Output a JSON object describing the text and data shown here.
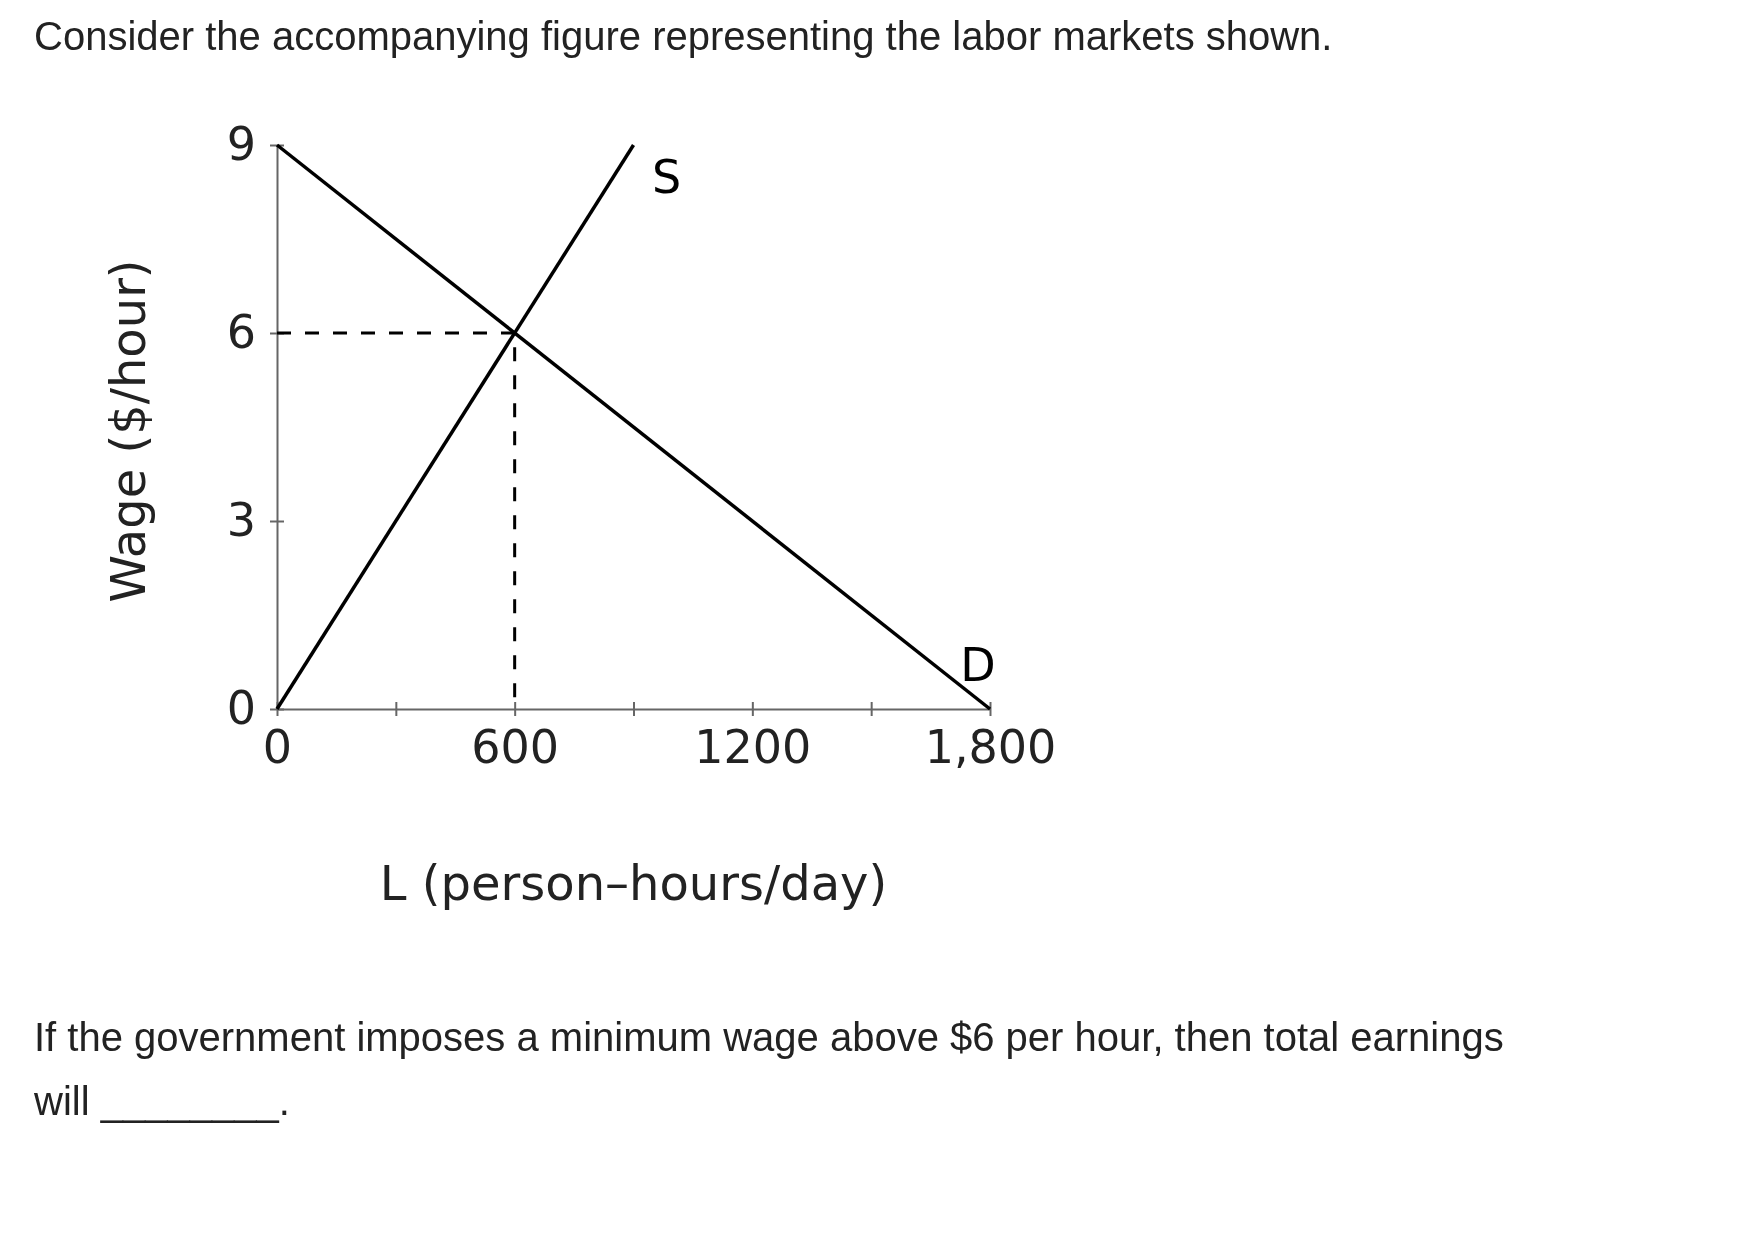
{
  "chart_data": {
    "type": "line",
    "title": "Consider the accompanying figure representing the labor markets shown.",
    "xlabel": "L (person–hours/day)",
    "ylabel": "Wage ($/hour)",
    "xlim": [
      0,
      1800
    ],
    "ylim": [
      0,
      9
    ],
    "xticks": [
      0,
      {
        "value": 300,
        "label": null
      },
      600,
      {
        "value": 900,
        "label": null
      },
      1200,
      {
        "value": 1500,
        "label": null
      },
      {
        "value": 1800,
        "label": "1,800"
      }
    ],
    "yticks": [
      0,
      3,
      6,
      9
    ],
    "grid": false,
    "marker": "none",
    "series": [
      {
        "name": "D",
        "color": "#000000",
        "x": [
          0,
          1800
        ],
        "values": [
          9,
          0
        ]
      },
      {
        "name": "S",
        "color": "#000000",
        "x": [
          0,
          900
        ],
        "values": [
          0,
          9
        ]
      },
      {
        "color": "#000000",
        "x": [
          0,
          600,
          600
        ],
        "values": [
          6,
          6,
          0
        ],
        "line_style": "dashed"
      }
    ],
    "annotations": [
      "If the government imposes a minimum wage above $6 per hour, then total earnings will ________."
    ]
  }
}
